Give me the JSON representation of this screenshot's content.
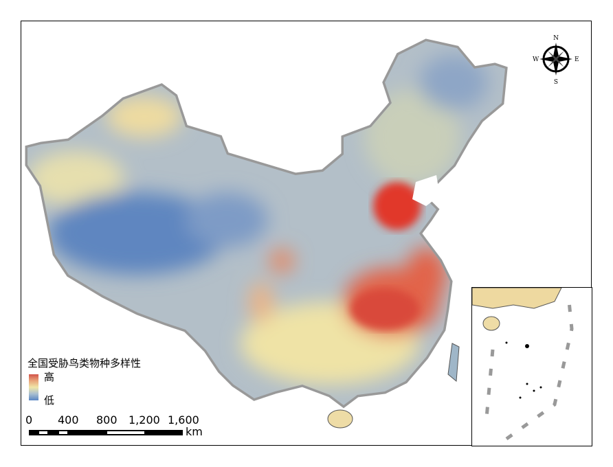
{
  "legend": {
    "title": "全国受胁鸟类物种多样性",
    "high": "高",
    "low": "低",
    "colors": [
      "#d2534a",
      "#f0e6a8",
      "#5a86c4"
    ]
  },
  "scale_bar": {
    "ticks": [
      "0",
      "400",
      "800",
      "1,200",
      "1,600"
    ],
    "unit": "km"
  },
  "compass": {
    "n": "N",
    "s": "S",
    "e": "E",
    "w": "W"
  }
}
